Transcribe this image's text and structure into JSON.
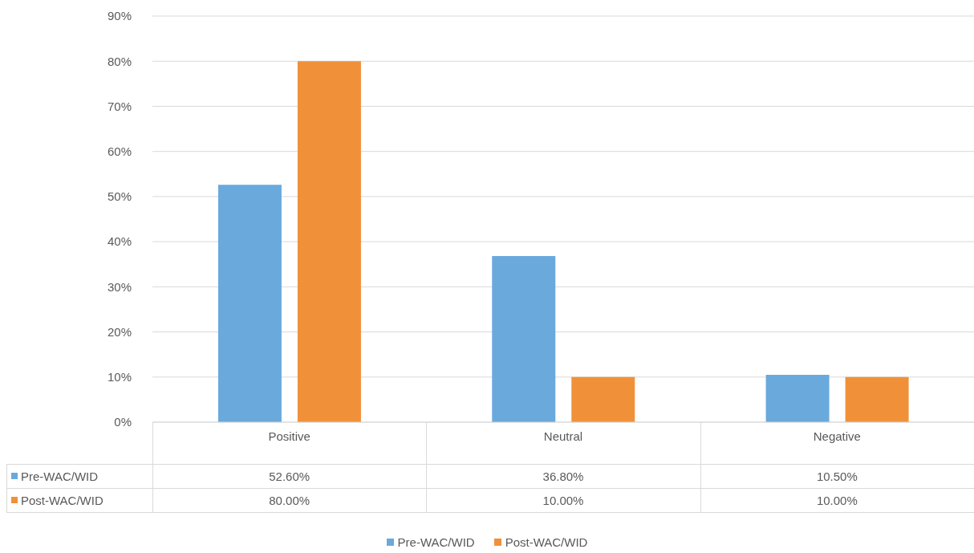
{
  "chart_data": {
    "type": "bar",
    "categories": [
      "Positive",
      "Neutral",
      "Negative"
    ],
    "series": [
      {
        "name": "Pre-WAC/WID",
        "color": "#6aa9dc",
        "values": [
          52.6,
          36.8,
          10.5
        ],
        "value_labels": [
          "52.60%",
          "36.80%",
          "10.50%"
        ]
      },
      {
        "name": "Post-WAC/WID",
        "color": "#f0913a",
        "values": [
          80,
          10,
          10
        ],
        "value_labels": [
          "80.00%",
          "10.00%",
          "10.00%"
        ]
      }
    ],
    "ylim": [
      0,
      90
    ],
    "yticks": [
      {
        "value": 0,
        "label": "0%"
      },
      {
        "value": 10,
        "label": "10%"
      },
      {
        "value": 20,
        "label": "20%"
      },
      {
        "value": 30,
        "label": "30%"
      },
      {
        "value": 40,
        "label": "40%"
      },
      {
        "value": 50,
        "label": "50%"
      },
      {
        "value": 60,
        "label": "60%"
      },
      {
        "value": 70,
        "label": "70%"
      },
      {
        "value": 80,
        "label": "80%"
      },
      {
        "value": 90,
        "label": "90%"
      }
    ],
    "grid": "y",
    "legend": "bottom"
  }
}
